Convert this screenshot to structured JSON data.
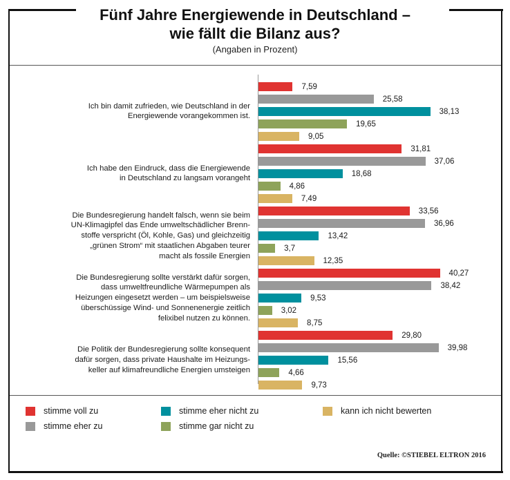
{
  "title_line1": "Fünf Jahre Energiewende in Deutschland –",
  "title_line2": "wie fällt die Bilanz aus?",
  "subtitle": "(Angaben in Prozent)",
  "source": "Quelle:  ©STIEBEL ELTRON 2016",
  "chart_data": {
    "type": "bar",
    "orientation": "horizontal",
    "title": "Fünf Jahre Energiewende in Deutschland – wie fällt die Bilanz aus?",
    "subtitle": "(Angaben in Prozent)",
    "categories": [
      [
        "Ich bin damit zufrieden, wie Deutschland  in der",
        "Energiewende vorangekommen ist."
      ],
      [
        "Ich habe den Eindruck, dass die Energiewende",
        "in Deutschland zu langsam vorangeht"
      ],
      [
        "Die Bundesregierung handelt falsch, wenn sie beim",
        "UN-Klimagipfel das Ende umweltschädlicher  Brenn-",
        "stoffe verspricht (Öl, Kohle, Gas) und gleichzeitig",
        "„grünen Strom“ mit staatlichen Abgaben teurer",
        "macht als fossile Energien"
      ],
      [
        "Die Bundesregierung sollte verstärkt dafür sorgen,",
        "dass umweltfreundliche Wärmepumpen als",
        "Heizungen eingesetzt werden – um beispielsweise",
        "überschüssige Wind- und Sonnenenergie zeitlich",
        "felixibel nutzen zu können."
      ],
      [
        "Die Politik der Bundesregierung sollte konsequent",
        "dafür sorgen, dass private Haushalte im Heizungs-",
        "keller auf klimafreundliche Energien umsteigen"
      ]
    ],
    "series": [
      {
        "name": "stimme voll zu",
        "color": "#e03331",
        "values": [
          7.59,
          31.81,
          33.56,
          40.27,
          29.8
        ],
        "labels": [
          "7,59",
          "31,81",
          "33,56",
          "40,27",
          "29,80"
        ]
      },
      {
        "name": "stimme eher zu",
        "color": "#999999",
        "values": [
          25.58,
          37.06,
          36.96,
          38.42,
          39.98
        ],
        "labels": [
          "25,58",
          "37,06",
          "36,96",
          "38,42",
          "39,98"
        ]
      },
      {
        "name": "stimme eher nicht zu",
        "color": "#00909e",
        "values": [
          38.13,
          18.68,
          13.42,
          9.53,
          15.56
        ],
        "labels": [
          "38,13",
          "18,68",
          "13,42",
          "9,53",
          "15,56"
        ]
      },
      {
        "name": "stimme gar nicht zu",
        "color": "#8ea35a",
        "values": [
          19.65,
          4.86,
          3.7,
          3.02,
          4.66
        ],
        "labels": [
          "19,65",
          "4,86",
          "3,7",
          "3,02",
          "4,66"
        ]
      },
      {
        "name": "kann ich nicht bewerten",
        "color": "#d9b463",
        "values": [
          9.05,
          7.49,
          12.35,
          8.75,
          9.73
        ],
        "labels": [
          "9,05",
          "7,49",
          "12,35",
          "8,75",
          "9,73"
        ]
      }
    ],
    "legend_position": "bottom",
    "grid": false
  }
}
